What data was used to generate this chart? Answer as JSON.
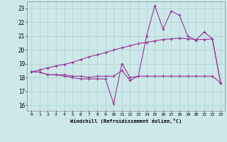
{
  "xlabel": "Windchill (Refroidissement éolien,°C)",
  "bg_color": "#cce8e8",
  "line_color": "#993399",
  "x_ticks": [
    0,
    1,
    2,
    3,
    4,
    5,
    6,
    7,
    8,
    9,
    10,
    11,
    12,
    13,
    14,
    15,
    16,
    17,
    18,
    19,
    20,
    21,
    22,
    23
  ],
  "y_ticks": [
    16,
    17,
    18,
    19,
    20,
    21,
    22,
    23
  ],
  "ylim": [
    15.6,
    23.5
  ],
  "xlim": [
    -0.5,
    23.5
  ],
  "series1": [
    18.4,
    18.4,
    18.2,
    18.2,
    18.2,
    18.1,
    18.1,
    18.0,
    18.1,
    18.1,
    18.1,
    18.5,
    17.8,
    18.1,
    21.0,
    23.2,
    21.5,
    22.8,
    22.5,
    21.0,
    20.7,
    21.3,
    20.8,
    17.6
  ],
  "series2": [
    18.4,
    18.4,
    18.2,
    18.2,
    18.1,
    18.0,
    17.9,
    17.9,
    17.9,
    17.9,
    16.1,
    19.0,
    18.0,
    18.1,
    18.1,
    18.1,
    18.1,
    18.1,
    18.1,
    18.1,
    18.1,
    18.1,
    18.1,
    17.6
  ],
  "series3": [
    18.4,
    18.55,
    18.7,
    18.85,
    18.95,
    19.1,
    19.3,
    19.5,
    19.65,
    19.8,
    20.0,
    20.15,
    20.3,
    20.45,
    20.55,
    20.65,
    20.75,
    20.8,
    20.85,
    20.8,
    20.75,
    20.75,
    20.8,
    17.6
  ]
}
